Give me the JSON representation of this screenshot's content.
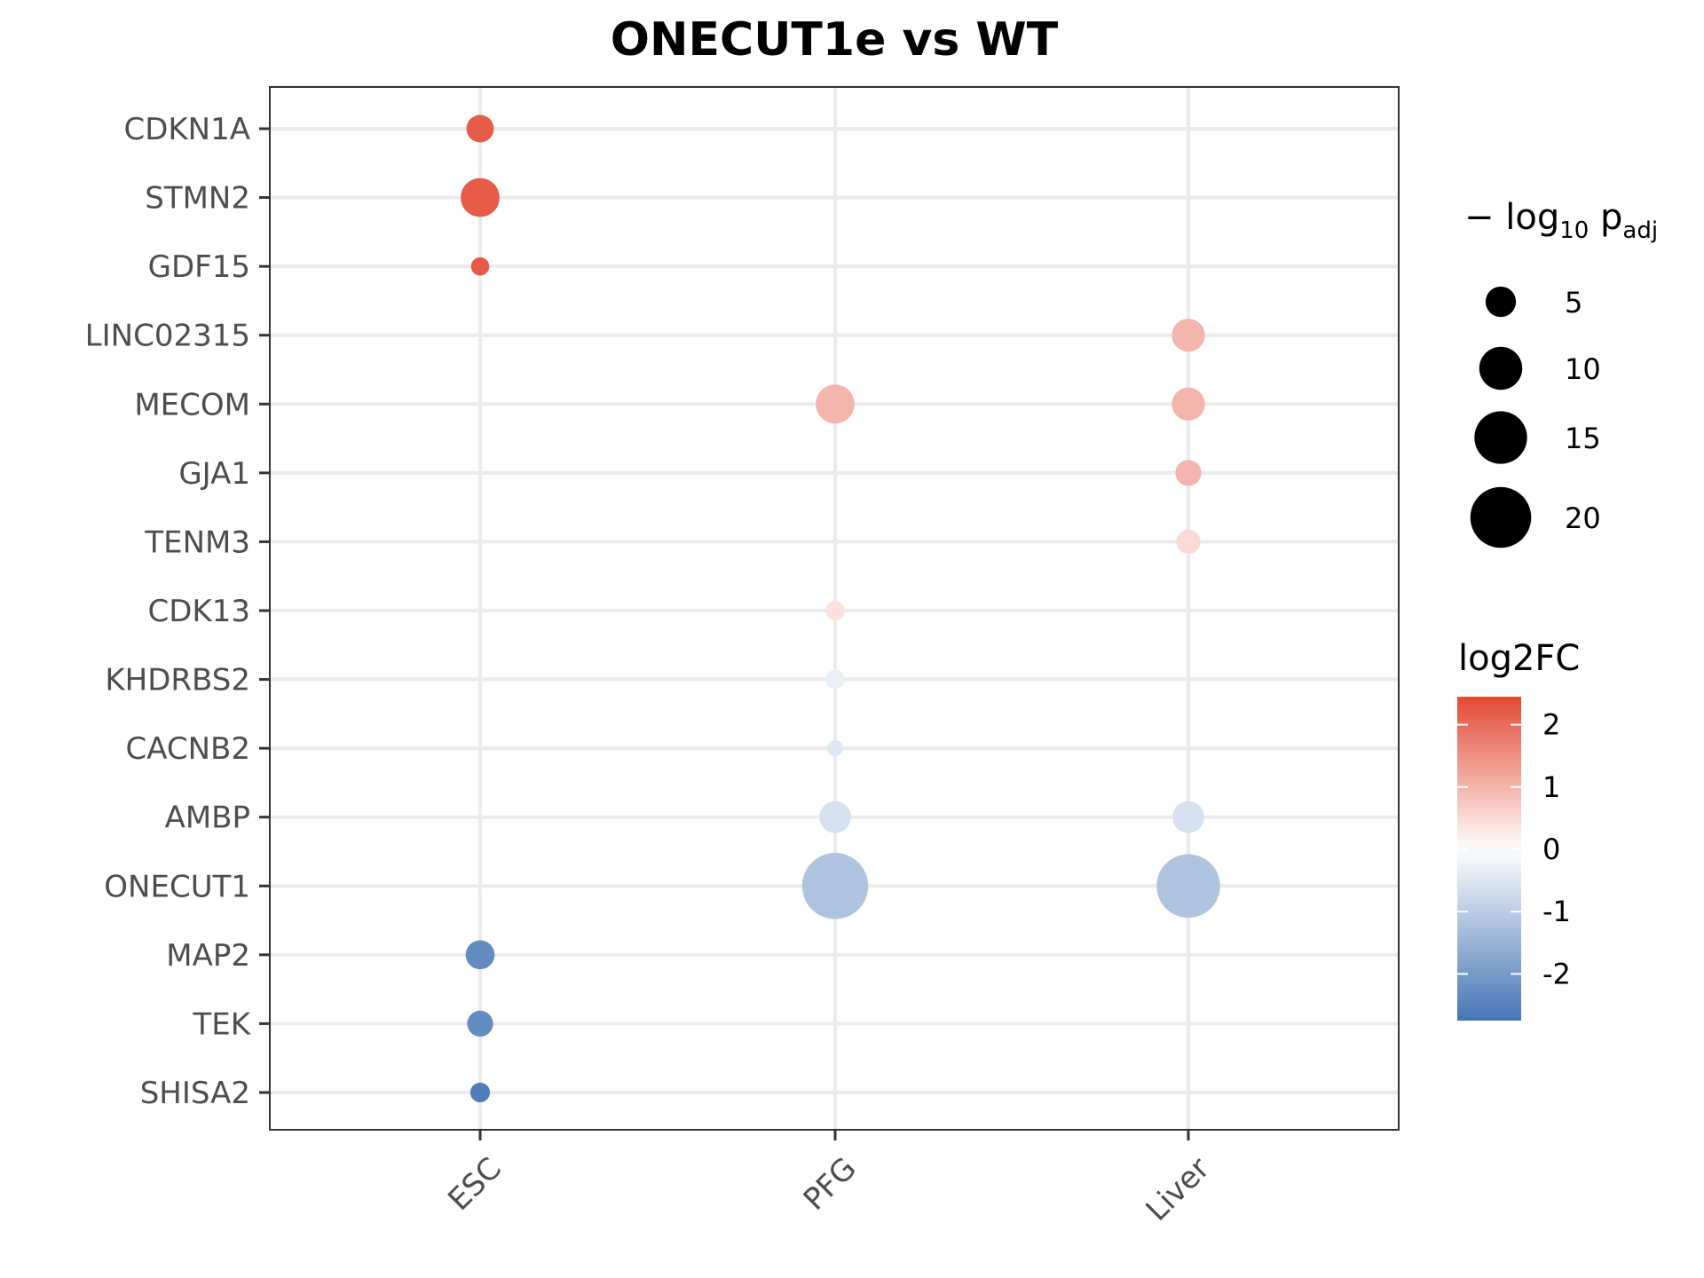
{
  "chart_data": {
    "type": "scatter",
    "title": "ONECUT1e vs WT",
    "xlabel": "",
    "ylabel": "",
    "x_categories": [
      "ESC",
      "PFG",
      "Liver"
    ],
    "y_categories": [
      "CDKN1A",
      "STMN2",
      "GDF15",
      "LINC02315",
      "MECOM",
      "GJA1",
      "TENM3",
      "CDK13",
      "KHDRBS2",
      "CACNB2",
      "AMBP",
      "ONECUT1",
      "MAP2",
      "TEK",
      "SHISA2"
    ],
    "points": [
      {
        "x": "ESC",
        "y": "CDKN1A",
        "log2FC": 2.2,
        "neg_log10_padj": 4.5
      },
      {
        "x": "ESC",
        "y": "STMN2",
        "log2FC": 2.2,
        "neg_log10_padj": 9
      },
      {
        "x": "ESC",
        "y": "GDF15",
        "log2FC": 2.2,
        "neg_log10_padj": 2
      },
      {
        "x": "Liver",
        "y": "LINC02315",
        "log2FC": 1.0,
        "neg_log10_padj": 6.5
      },
      {
        "x": "PFG",
        "y": "MECOM",
        "log2FC": 1.0,
        "neg_log10_padj": 9
      },
      {
        "x": "Liver",
        "y": "MECOM",
        "log2FC": 1.0,
        "neg_log10_padj": 6.5
      },
      {
        "x": "Liver",
        "y": "GJA1",
        "log2FC": 1.0,
        "neg_log10_padj": 4
      },
      {
        "x": "Liver",
        "y": "TENM3",
        "log2FC": 0.5,
        "neg_log10_padj": 3.5
      },
      {
        "x": "PFG",
        "y": "CDK13",
        "log2FC": 0.4,
        "neg_log10_padj": 2.2
      },
      {
        "x": "PFG",
        "y": "KHDRBS2",
        "log2FC": -0.3,
        "neg_log10_padj": 2.2
      },
      {
        "x": "PFG",
        "y": "CACNB2",
        "log2FC": -0.5,
        "neg_log10_padj": 1.5
      },
      {
        "x": "PFG",
        "y": "AMBP",
        "log2FC": -0.6,
        "neg_log10_padj": 6
      },
      {
        "x": "Liver",
        "y": "AMBP",
        "log2FC": -0.6,
        "neg_log10_padj": 6
      },
      {
        "x": "PFG",
        "y": "ONECUT1",
        "log2FC": -1.2,
        "neg_log10_padj": 26
      },
      {
        "x": "Liver",
        "y": "ONECUT1",
        "log2FC": -1.2,
        "neg_log10_padj": 24
      },
      {
        "x": "ESC",
        "y": "MAP2",
        "log2FC": -2.3,
        "neg_log10_padj": 5
      },
      {
        "x": "ESC",
        "y": "TEK",
        "log2FC": -2.3,
        "neg_log10_padj": 4
      },
      {
        "x": "ESC",
        "y": "SHISA2",
        "log2FC": -2.6,
        "neg_log10_padj": 2.3
      }
    ],
    "size_legend": {
      "title_main": "− log",
      "title_sub1": "10",
      "title_mid": " p",
      "title_sub2": "adj",
      "values": [
        5,
        10,
        15,
        20
      ]
    },
    "color_legend": {
      "title": "log2FC",
      "ticks": [
        2,
        1,
        0,
        -1,
        -2
      ],
      "tick_labels": [
        "2",
        "1",
        "0",
        "-1",
        "-2"
      ],
      "range": [
        -2.75,
        2.45
      ],
      "low_color": "#4575b4",
      "mid_color": "#ffffff",
      "high_color": "#e34a33"
    },
    "grid": true,
    "legend_position": "right"
  }
}
